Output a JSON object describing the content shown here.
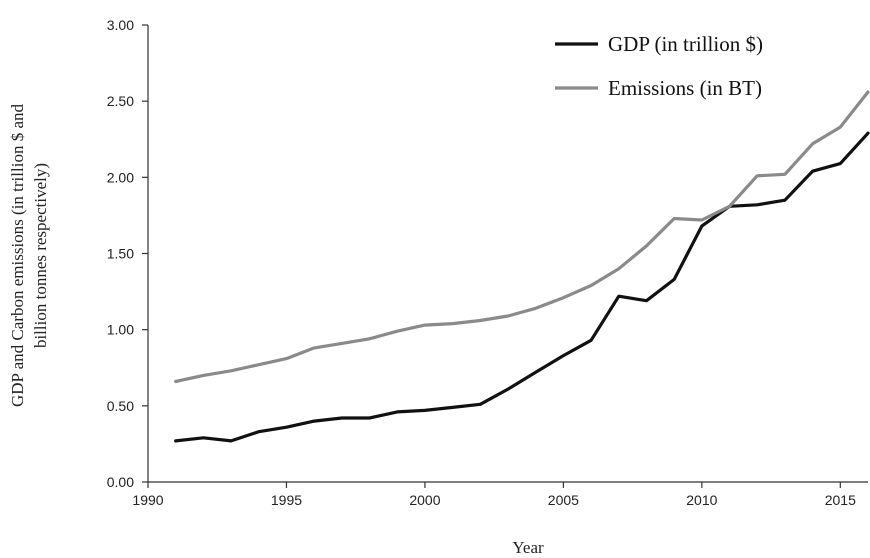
{
  "chart_data": {
    "type": "line",
    "xlabel": "Year",
    "ylabel_lines": [
      "GDP  and Carbon emissions (in trillion  $ and",
      "billion tonnes respectively)"
    ],
    "xlim": [
      1990,
      2016
    ],
    "ylim": [
      0,
      3.0
    ],
    "x_ticks": [
      1990,
      1995,
      2000,
      2005,
      2010,
      2015
    ],
    "x_tick_labels": [
      "1990",
      "1995",
      "2000",
      "2005",
      "2010",
      "2015"
    ],
    "y_ticks": [
      0,
      0.5,
      1.0,
      1.5,
      2.0,
      2.5,
      3.0
    ],
    "y_tick_labels": [
      "0.00",
      "0.50",
      "1.00",
      "1.50",
      "2.00",
      "2.50",
      "3.00"
    ],
    "grid": false,
    "legend_position": "top-right",
    "x": [
      1991,
      1992,
      1993,
      1994,
      1995,
      1996,
      1997,
      1998,
      1999,
      2000,
      2001,
      2002,
      2003,
      2004,
      2005,
      2006,
      2007,
      2008,
      2009,
      2010,
      2011,
      2012,
      2013,
      2014,
      2015,
      2016
    ],
    "series": [
      {
        "name": "GDP (in trillion $)",
        "color": "#111111",
        "values": [
          0.27,
          0.29,
          0.27,
          0.33,
          0.36,
          0.4,
          0.42,
          0.42,
          0.46,
          0.47,
          0.49,
          0.51,
          0.61,
          0.72,
          0.83,
          0.93,
          1.22,
          1.19,
          1.33,
          1.68,
          1.81,
          1.82,
          1.85,
          2.04,
          2.09,
          2.29
        ]
      },
      {
        "name": "Emissions (in BT)",
        "color": "#8a8a8a",
        "values": [
          0.66,
          0.7,
          0.73,
          0.77,
          0.81,
          0.88,
          0.91,
          0.94,
          0.99,
          1.03,
          1.04,
          1.06,
          1.09,
          1.14,
          1.21,
          1.29,
          1.4,
          1.55,
          1.73,
          1.72,
          1.81,
          2.01,
          2.02,
          2.22,
          2.33,
          2.56
        ]
      }
    ]
  }
}
